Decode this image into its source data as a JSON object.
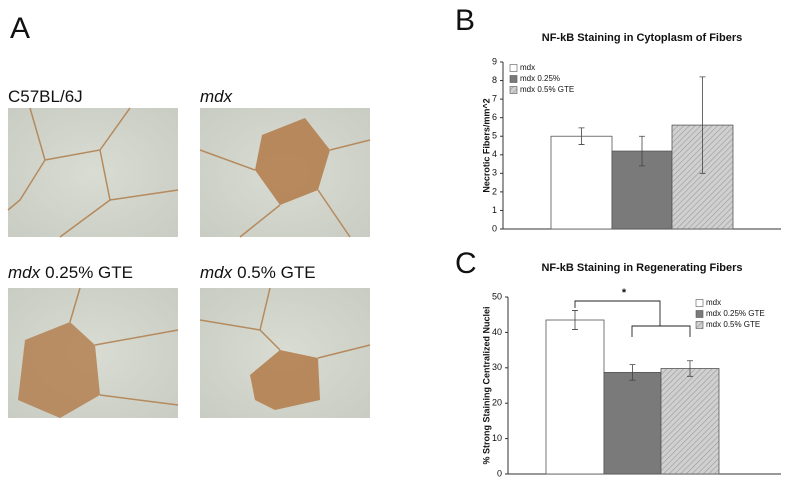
{
  "panels": [
    "A",
    "B",
    "C"
  ],
  "micrographs": [
    {
      "strain": "C57BL/6J",
      "treatment": null
    },
    {
      "strain": "mdx",
      "treatment": null
    },
    {
      "strain": "mdx",
      "treatment": "0.25% GTE"
    },
    {
      "strain": "mdx",
      "treatment": "0.5% GTE"
    }
  ],
  "chart_data": [
    {
      "type": "bar",
      "title": "NF-kB Staining in Cytoplasm of Fibers",
      "ylabel": "Necrotic Fibers/mm^2",
      "ylim": [
        0,
        9
      ],
      "yticks": [
        0,
        1,
        2,
        3,
        4,
        5,
        6,
        7,
        8,
        9
      ],
      "legend": "upper left",
      "series": [
        {
          "name": "mdx",
          "color": "#ffffff",
          "values": [
            5.0
          ],
          "errors": [
            0.45
          ]
        },
        {
          "name": "mdx 0.25%",
          "color": "#7a7a7a",
          "values": [
            4.2
          ],
          "errors": [
            0.8
          ]
        },
        {
          "name": "mdx 0.5% GTE",
          "color": "#c8c8c8",
          "hatch": true,
          "values": [
            5.6
          ],
          "errors": [
            2.6
          ]
        }
      ]
    },
    {
      "type": "bar",
      "title": "NF-kB Staining in Regenerating Fibers",
      "ylabel": "% Strong Staining Centralized Nuclei",
      "ylim": [
        0,
        50
      ],
      "yticks": [
        0,
        10,
        20,
        30,
        40,
        50
      ],
      "legend": "upper right",
      "annotation": "*",
      "series": [
        {
          "name": "mdx",
          "color": "#ffffff",
          "values": [
            43.5
          ],
          "errors": [
            2.7
          ]
        },
        {
          "name": "mdx 0.25% GTE",
          "color": "#7a7a7a",
          "values": [
            28.7
          ],
          "errors": [
            2.2
          ]
        },
        {
          "name": "mdx 0.5% GTE",
          "color": "#c8c8c8",
          "hatch": true,
          "values": [
            29.8
          ],
          "errors": [
            2.2
          ]
        }
      ]
    }
  ]
}
